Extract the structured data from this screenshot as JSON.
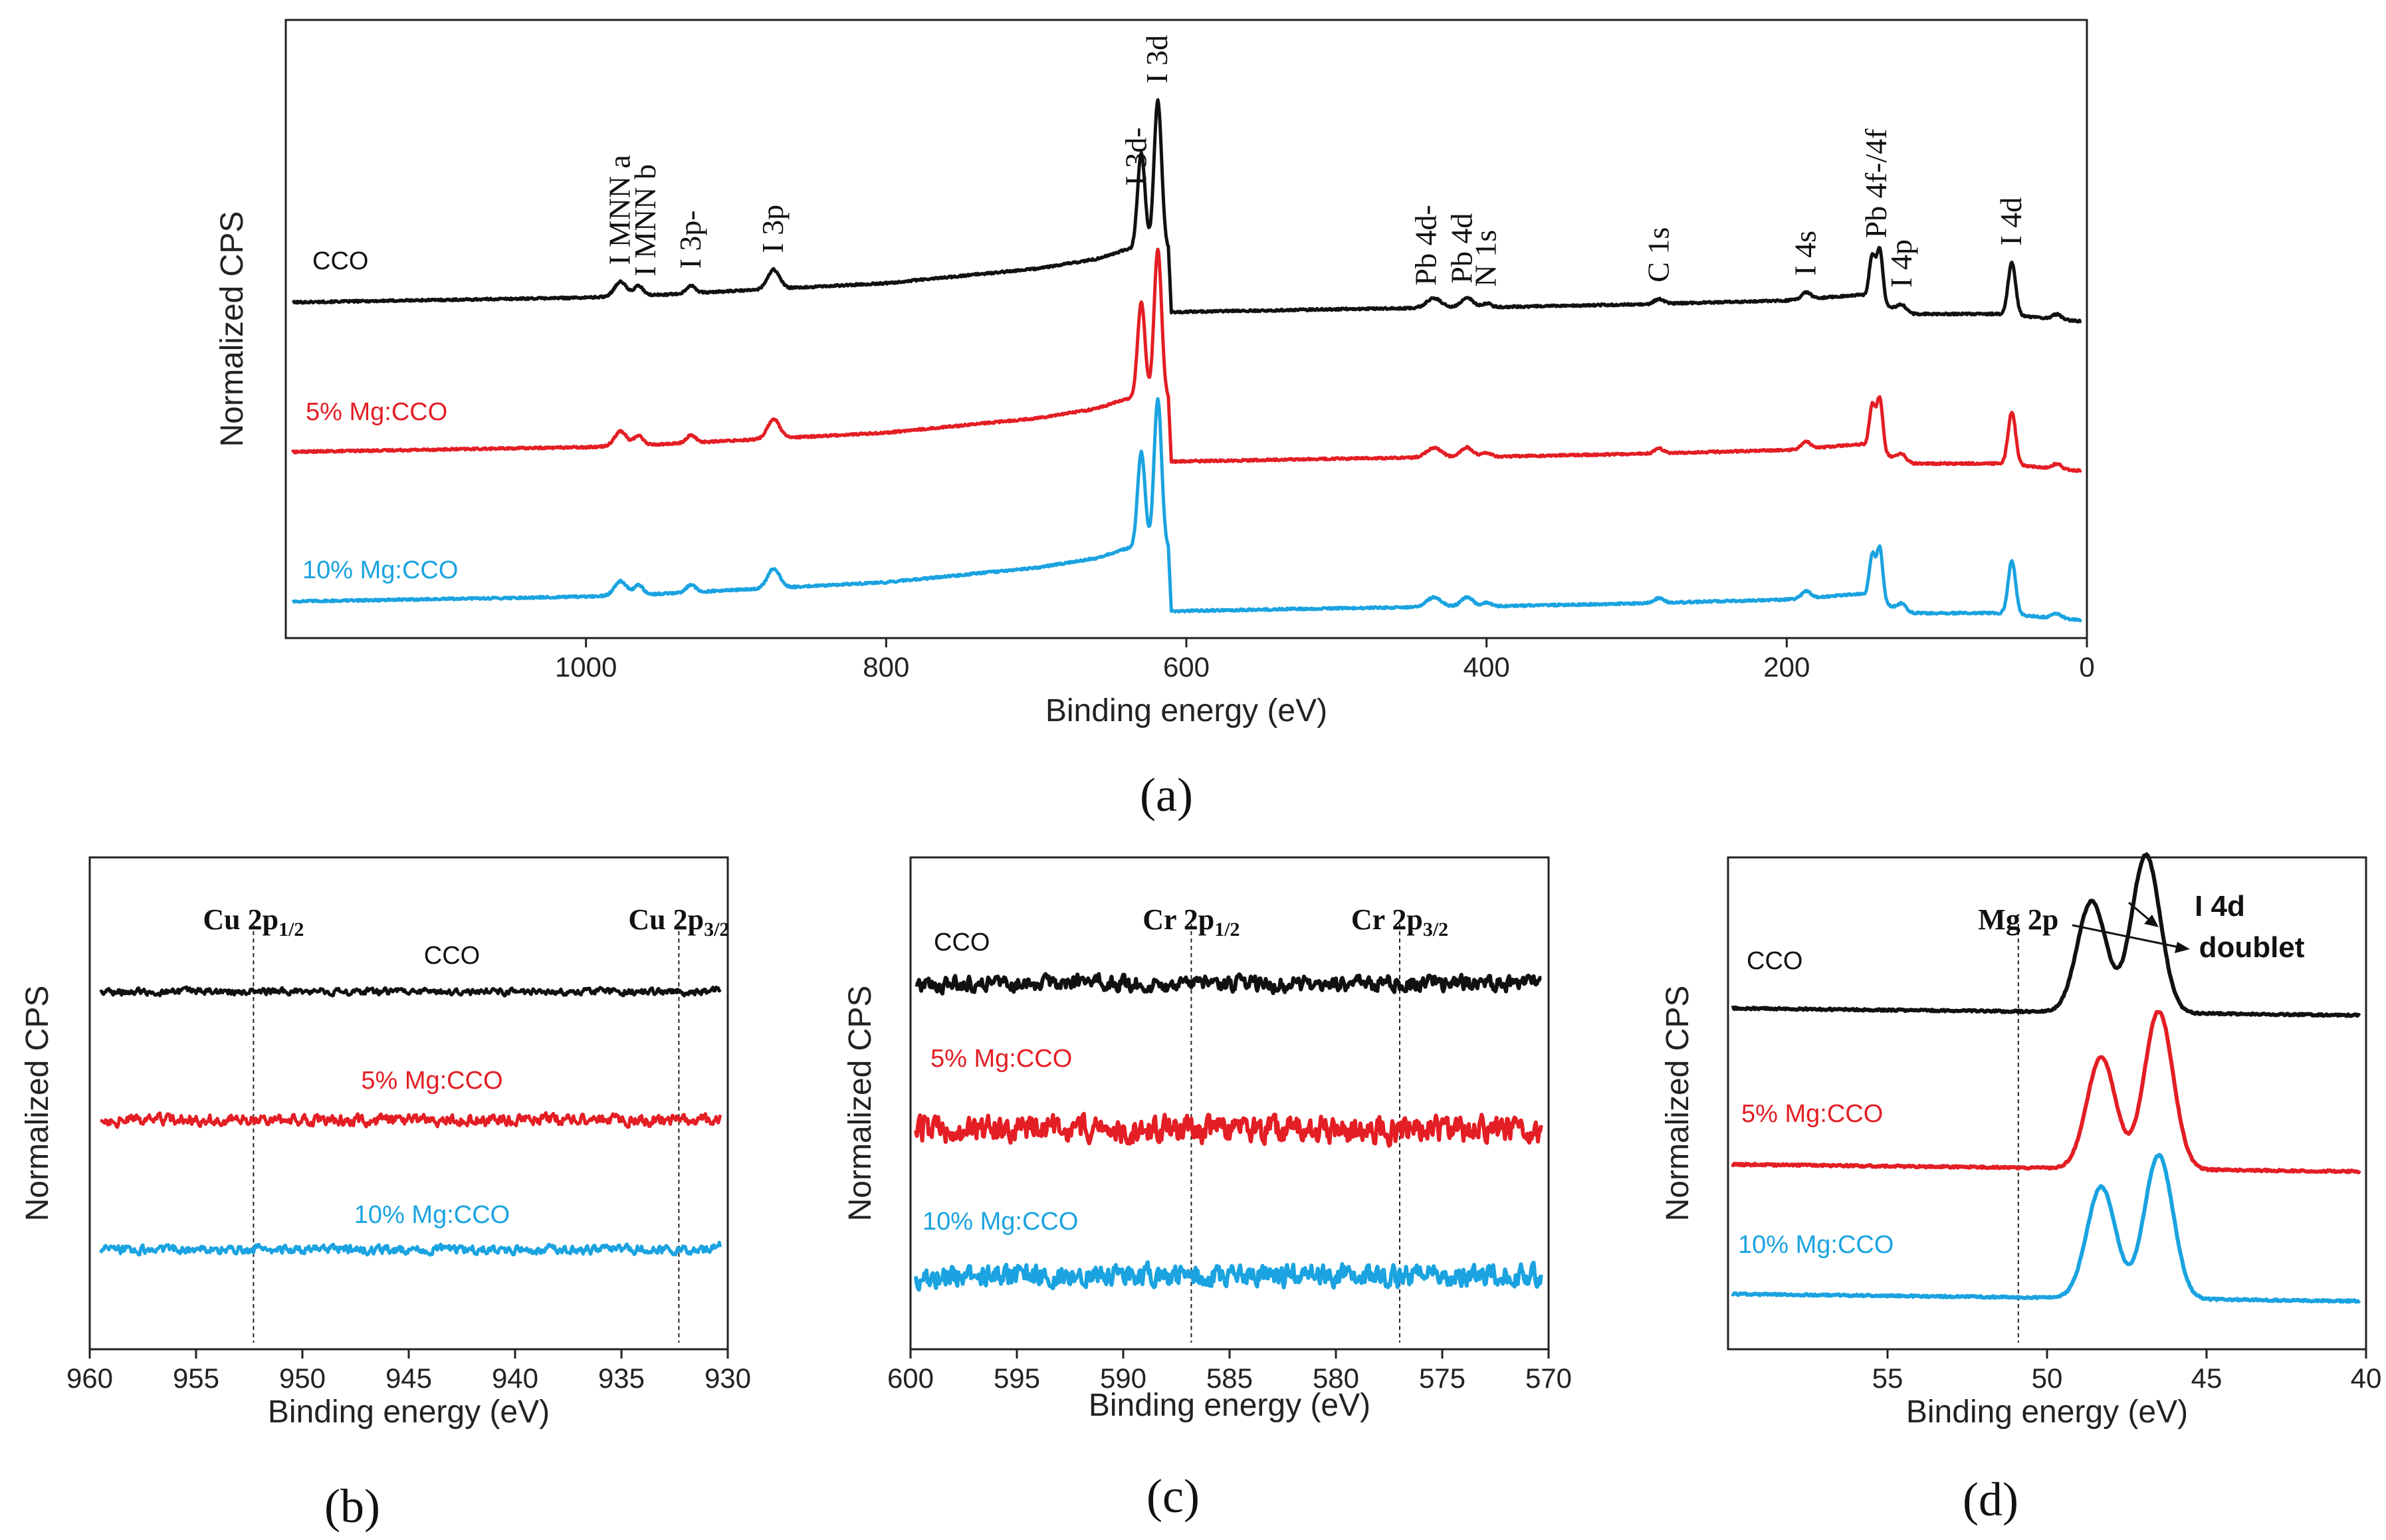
{
  "figure": {
    "colors": {
      "black": "#111111",
      "red": "#e31e24",
      "cyan": "#1aa3e0"
    },
    "shared": {
      "ylabel": "Normalized CPS",
      "xlabel": "Binding energy (eV)",
      "series_names": [
        "CCO",
        "5% Mg:CCO",
        "10% Mg:CCO"
      ]
    }
  },
  "chart_data": [
    {
      "id": "a",
      "type": "line",
      "panel_label": "(a)",
      "title": "",
      "xlabel": "Binding energy (eV)",
      "ylabel": "Normalized CPS",
      "xlim": [
        1200,
        0
      ],
      "x_ticks": [
        1000,
        800,
        600,
        400,
        200,
        0
      ],
      "grid": false,
      "legend": "labels placed above each trace on the left",
      "series": [
        {
          "name": "CCO",
          "color": "#111111",
          "offset": 2.0
        },
        {
          "name": "5% Mg:CCO",
          "color": "#e31e24",
          "offset": 1.0
        },
        {
          "name": "10% Mg:CCO",
          "color": "#1aa3e0",
          "offset": 0.0
        }
      ],
      "baseline_points": [
        [
          1200,
          0.0
        ],
        [
          1000,
          0.05
        ],
        [
          950,
          0.08
        ],
        [
          800,
          0.2
        ],
        [
          700,
          0.35
        ],
        [
          660,
          0.45
        ],
        [
          640,
          0.55
        ],
        [
          612,
          0.55
        ],
        [
          610,
          -0.1
        ],
        [
          500,
          -0.07
        ],
        [
          400,
          -0.05
        ],
        [
          300,
          -0.02
        ],
        [
          200,
          0.02
        ],
        [
          150,
          0.08
        ],
        [
          120,
          -0.12
        ],
        [
          60,
          -0.12
        ],
        [
          0,
          -0.2
        ]
      ],
      "peaks": [
        {
          "x": 977,
          "h": 0.15,
          "w": 4
        },
        {
          "x": 965,
          "h": 0.1,
          "w": 3
        },
        {
          "x": 930,
          "h": 0.08,
          "w": 3
        },
        {
          "x": 875,
          "h": 0.2,
          "w": 4
        },
        {
          "x": 630,
          "h": 1.0,
          "w": 2.5
        },
        {
          "x": 619,
          "h": 1.55,
          "w": 2.5
        },
        {
          "x": 435,
          "h": 0.1,
          "w": 5
        },
        {
          "x": 413,
          "h": 0.1,
          "w": 4
        },
        {
          "x": 400,
          "h": 0.04,
          "w": 3
        },
        {
          "x": 285,
          "h": 0.05,
          "w": 3
        },
        {
          "x": 187,
          "h": 0.07,
          "w": 3
        },
        {
          "x": 143,
          "h": 0.45,
          "w": 2
        },
        {
          "x": 138,
          "h": 0.55,
          "w": 2
        },
        {
          "x": 123,
          "h": 0.08,
          "w": 3
        },
        {
          "x": 50,
          "h": 0.55,
          "w": 2.5
        },
        {
          "x": 20,
          "h": 0.05,
          "w": 3
        }
      ],
      "peak_labels": [
        {
          "text": "I MNN a",
          "x": 977
        },
        {
          "text": "I MNN b",
          "x": 960
        },
        {
          "text": "I 3p-",
          "x": 930
        },
        {
          "text": "I 3p",
          "x": 875
        },
        {
          "text": "I 3d-",
          "x": 633
        },
        {
          "text": "I 3d",
          "x": 619
        },
        {
          "text": "Pb 4d-",
          "x": 440
        },
        {
          "text": "Pb 4d",
          "x": 416
        },
        {
          "text": "N 1s",
          "x": 400
        },
        {
          "text": "C 1s",
          "x": 285
        },
        {
          "text": "I 4s",
          "x": 187
        },
        {
          "text": "Pb 4f-/4f",
          "x": 140
        },
        {
          "text": "I 4p",
          "x": 123
        },
        {
          "text": "I 4d",
          "x": 50
        }
      ]
    },
    {
      "id": "b",
      "type": "line",
      "panel_label": "(b)",
      "title": "",
      "xlabel": "Binding energy (eV)",
      "ylabel": "Normalized CPS",
      "xlim": [
        960,
        930
      ],
      "x_ticks": [
        960,
        955,
        950,
        945,
        940,
        935,
        930
      ],
      "grid": false,
      "legend": "labels placed above each trace",
      "series": [
        {
          "name": "CCO",
          "color": "#111111",
          "offset": 2.0,
          "noise": 0.03
        },
        {
          "name": "5% Mg:CCO",
          "color": "#e31e24",
          "offset": 1.0,
          "noise": 0.05
        },
        {
          "name": "10% Mg:CCO",
          "color": "#1aa3e0",
          "offset": 0.0,
          "noise": 0.04
        }
      ],
      "reference_lines": [
        {
          "x": 952.3,
          "label": "Cu 2p",
          "subscript": "1/2"
        },
        {
          "x": 932.3,
          "label": "Cu 2p",
          "subscript": "3/2"
        }
      ]
    },
    {
      "id": "c",
      "type": "line",
      "panel_label": "(c)",
      "title": "",
      "xlabel": "Binding energy (eV)",
      "ylabel": "Normalized CPS",
      "xlim": [
        600,
        570
      ],
      "x_ticks": [
        600,
        595,
        590,
        585,
        580,
        575,
        570
      ],
      "grid": false,
      "legend": "labels placed above each trace",
      "series": [
        {
          "name": "CCO",
          "color": "#111111",
          "offset": 2.0,
          "noise": 0.1
        },
        {
          "name": "5% Mg:CCO",
          "color": "#e31e24",
          "offset": 1.0,
          "noise": 0.17
        },
        {
          "name": "10% Mg:CCO",
          "color": "#1aa3e0",
          "offset": 0.0,
          "noise": 0.14
        }
      ],
      "reference_lines": [
        {
          "x": 586.8,
          "label": "Cr 2p",
          "subscript": "1/2"
        },
        {
          "x": 577.0,
          "label": "Cr 2p",
          "subscript": "3/2"
        }
      ]
    },
    {
      "id": "d",
      "type": "line",
      "panel_label": "(d)",
      "title": "",
      "xlabel": "Binding energy (eV)",
      "ylabel": "Normalized CPS",
      "xlim": [
        60,
        40
      ],
      "x_ticks": [
        55,
        50,
        45,
        40
      ],
      "grid": false,
      "legend": "labels placed above each trace",
      "series": [
        {
          "name": "CCO",
          "color": "#111111",
          "offset": 2.0,
          "peaks": [
            {
              "x": 48.6,
              "h": 0.62
            },
            {
              "x": 46.9,
              "h": 0.88
            }
          ]
        },
        {
          "name": "5% Mg:CCO",
          "color": "#e31e24",
          "offset": 1.0,
          "peaks": [
            {
              "x": 48.3,
              "h": 0.62
            },
            {
              "x": 46.5,
              "h": 0.88
            }
          ]
        },
        {
          "name": "10% Mg:CCO",
          "color": "#1aa3e0",
          "offset": 0.0,
          "peaks": [
            {
              "x": 48.3,
              "h": 0.62
            },
            {
              "x": 46.5,
              "h": 0.8
            }
          ]
        }
      ],
      "reference_lines": [
        {
          "x": 50.9,
          "label": "Mg 2p",
          "subscript": ""
        }
      ],
      "annotation": {
        "line1": "I 4d",
        "line2": "doublet"
      }
    }
  ]
}
